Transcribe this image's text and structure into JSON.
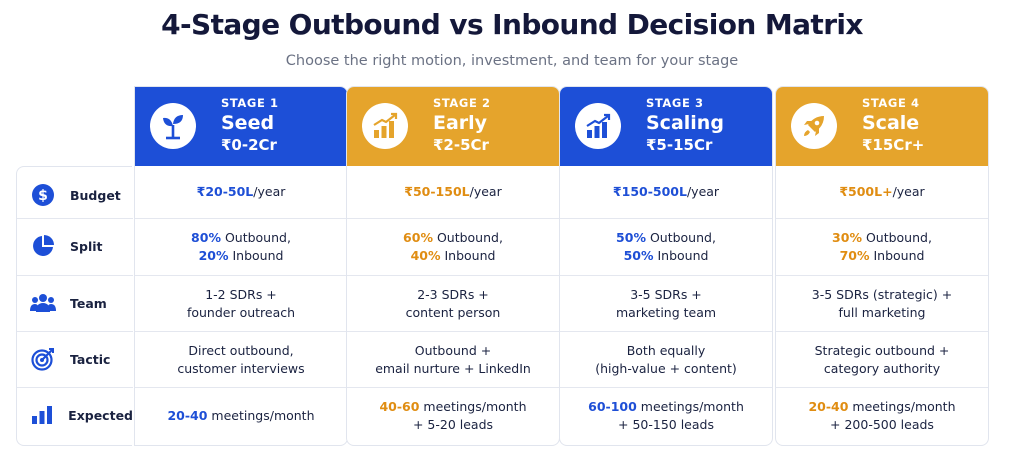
{
  "header": {
    "title": "4-Stage Outbound vs Inbound Decision Matrix",
    "subtitle": "Choose the right motion, investment, and team for your stage"
  },
  "colors": {
    "blue": "#1d4fd7",
    "orange": "#e5a42c",
    "highlight_blue": "#1e4fd6",
    "highlight_orange": "#e08d12"
  },
  "row_labels": [
    {
      "label": "Budget",
      "icon": "dollar-icon"
    },
    {
      "label": "Split",
      "icon": "pie-chart-icon"
    },
    {
      "label": "Team",
      "icon": "team-icon"
    },
    {
      "label": "Tactic",
      "icon": "target-icon"
    },
    {
      "label": "Expected",
      "icon": "bar-chart-icon"
    }
  ],
  "stages": [
    {
      "number": "STAGE 1",
      "name": "Seed",
      "range": "₹0-2Cr",
      "icon": "sprout-icon",
      "theme": "blue",
      "budget": {
        "hl": "₹20-50L",
        "rest": "/year"
      },
      "split": {
        "l1_hl": "80%",
        "l1": " Outbound,",
        "l2_hl": "20%",
        "l2": " Inbound"
      },
      "team": {
        "l1": "1-2 SDRs +",
        "l2": "founder outreach"
      },
      "tactic": {
        "l1": "Direct outbound,",
        "l2": "customer interviews"
      },
      "expected": {
        "l1_hl": "20-40",
        "l1": " meetings/month",
        "l2": ""
      }
    },
    {
      "number": "STAGE 2",
      "name": "Early",
      "range": "₹2-5Cr",
      "icon": "growth-chart-icon",
      "theme": "orange",
      "budget": {
        "hl": "₹50-150L",
        "rest": "/year"
      },
      "split": {
        "l1_hl": "60%",
        "l1": " Outbound,",
        "l2_hl": "40%",
        "l2": " Inbound"
      },
      "team": {
        "l1": "2-3 SDRs +",
        "l2": "content person"
      },
      "tactic": {
        "l1": "Outbound +",
        "l2": "email nurture + LinkedIn"
      },
      "expected": {
        "l1_hl": "40-60",
        "l1": " meetings/month",
        "l2": "+ 5-20 leads"
      }
    },
    {
      "number": "STAGE 3",
      "name": "Scaling",
      "range": "₹5-15Cr",
      "icon": "trend-chart-icon",
      "theme": "blue",
      "budget": {
        "hl": "₹150-500L",
        "rest": "/year"
      },
      "split": {
        "l1_hl": "50%",
        "l1": " Outbound,",
        "l2_hl": "50%",
        "l2": " Inbound"
      },
      "team": {
        "l1": "3-5 SDRs +",
        "l2": "marketing team"
      },
      "tactic": {
        "l1": "Both equally",
        "l2": "(high-value + content)"
      },
      "expected": {
        "l1_hl": "60-100",
        "l1": " meetings/month",
        "l2": "+ 50-150 leads"
      }
    },
    {
      "number": "STAGE 4",
      "name": "Scale",
      "range": "₹15Cr+",
      "icon": "rocket-icon",
      "theme": "orange",
      "budget": {
        "hl": "₹500L+",
        "rest": "/year"
      },
      "split": {
        "l1_hl": "30%",
        "l1": " Outbound,",
        "l2_hl": "70%",
        "l2": " Inbound"
      },
      "team": {
        "l1": "3-5 SDRs (strategic) +",
        "l2": "full marketing"
      },
      "tactic": {
        "l1": "Strategic outbound +",
        "l2": "category authority"
      },
      "expected": {
        "l1_hl": "20-40",
        "l1": " meetings/month",
        "l2": "+ 200-500 leads"
      }
    }
  ]
}
